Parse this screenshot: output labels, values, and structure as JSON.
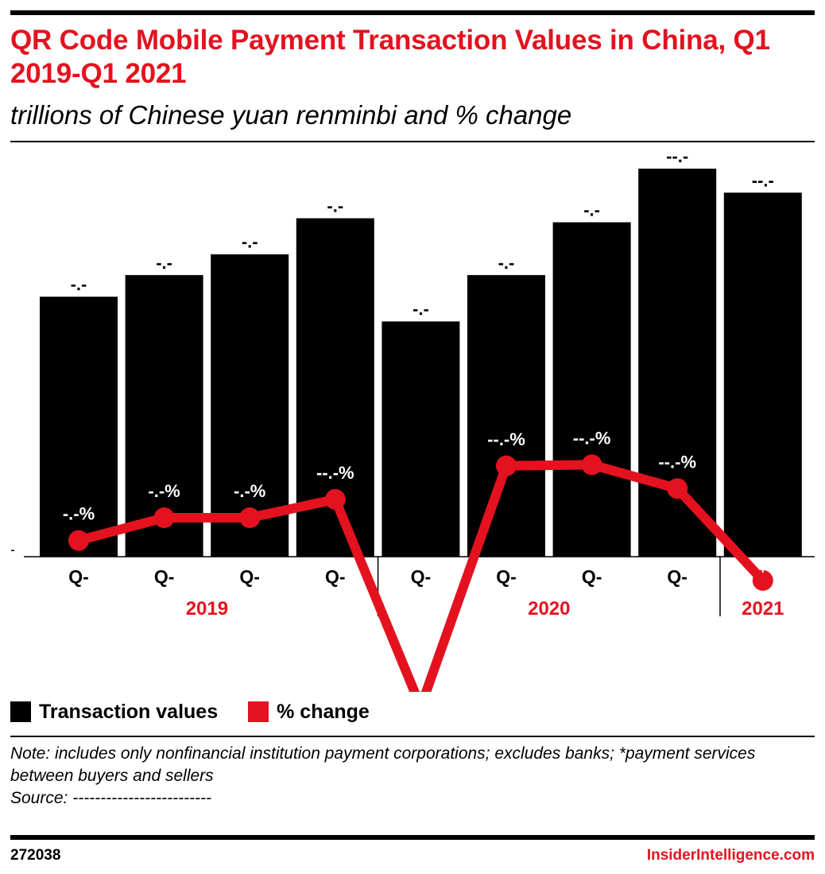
{
  "title": "QR Code Mobile Payment Transaction Values in China, Q1 2019-Q1 2021",
  "subtitle": "trillions of Chinese yuan renminbi and % change",
  "legend": {
    "bars_label": "Transaction values",
    "line_label": "% change"
  },
  "note": {
    "text": "Note: includes only nonfinancial institution payment corporations; excludes banks; *payment services between buyers and sellers",
    "source": "Source: -------------------------"
  },
  "footer": {
    "id": "272038",
    "brand": "InsiderIntelligence.com"
  },
  "colors": {
    "bars": "#000000",
    "line": "#e4121f",
    "title": "#e4121f"
  },
  "chart_data": {
    "type": "bar",
    "categories": [
      "Q-",
      "Q-",
      "Q-",
      "Q-",
      "Q-",
      "Q-",
      "Q-",
      "Q-",
      "Q-"
    ],
    "groups": [
      {
        "label": "2019",
        "count": 4
      },
      {
        "label": "2020",
        "count": 4
      },
      {
        "label": "2021",
        "count": 1
      }
    ],
    "y_axis_tick": "-",
    "series": [
      {
        "name": "Transaction values",
        "type": "bar",
        "values": [
          3.25,
          3.52,
          3.78,
          4.23,
          2.94,
          3.52,
          4.18,
          4.85,
          4.55
        ],
        "labels": [
          "-.-",
          "-.-",
          "-.-",
          "-.-",
          "-.-",
          "-.-",
          "-.-",
          "--.-",
          "--.-"
        ]
      },
      {
        "name": "% change",
        "type": "line",
        "values": [
          1.5,
          3.6,
          3.6,
          5.3,
          -13.9,
          8.4,
          8.5,
          6.3,
          -2.2
        ],
        "labels": [
          "-.-%",
          "-.-%",
          "-.-%",
          "--.-%",
          "---.-%",
          "--.-%",
          "--.-%",
          "--.-%",
          "--.-%"
        ],
        "last_point_label_prefix": "Q-"
      }
    ]
  }
}
